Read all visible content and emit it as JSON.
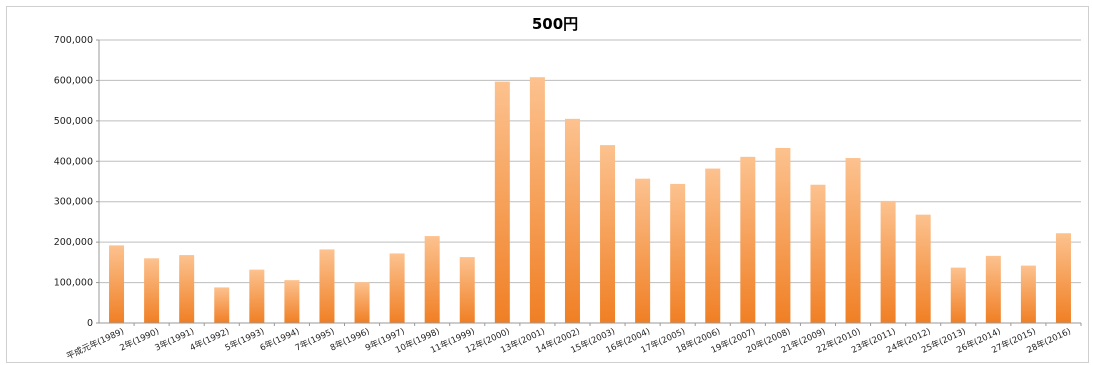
{
  "chart_data": {
    "type": "bar",
    "title": "500円",
    "xlabel": "",
    "ylabel": "",
    "ylim": [
      0,
      700000
    ],
    "y_ticks": [
      "0",
      "100,000",
      "200,000",
      "300,000",
      "400,000",
      "500,000",
      "600,000",
      "700,000"
    ],
    "grid": true,
    "legend": "none",
    "bar_color": "#f79646",
    "categories": [
      "平成元年(1989)",
      "2年(1990)",
      "3年(1991)",
      "4年(1992)",
      "5年(1993)",
      "6年(1994)",
      "7年(1995)",
      "8年(1996)",
      "9年(1997)",
      "10年(1998)",
      "11年(1999)",
      "12年(2000)",
      "13年(2001)",
      "14年(2002)",
      "15年(2003)",
      "16年(2004)",
      "17年(2005)",
      "18年(2006)",
      "19年(2007)",
      "20年(2008)",
      "21年(2009)",
      "22年(2010)",
      "23年(2011)",
      "24年(2012)",
      "25年(2013)",
      "26年(2014)",
      "27年(2015)",
      "28年(2016)"
    ],
    "values": [
      192000,
      160000,
      168000,
      88000,
      132000,
      106000,
      182000,
      101000,
      172000,
      215000,
      163000,
      597000,
      608000,
      505000,
      440000,
      357000,
      344000,
      382000,
      411000,
      433000,
      342000,
      408000,
      302000,
      268000,
      137000,
      166000,
      142000,
      222000
    ]
  }
}
